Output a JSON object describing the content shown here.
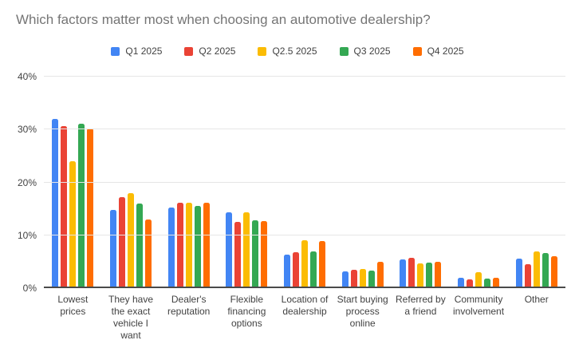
{
  "chart_data": {
    "type": "bar",
    "title": "Which factors matter most when choosing an automotive dealership?",
    "xlabel": "",
    "ylabel": "",
    "ylim": [
      0,
      40
    ],
    "yticks": [
      {
        "value": 0,
        "label": "0%"
      },
      {
        "value": 10,
        "label": "10%"
      },
      {
        "value": 20,
        "label": "20%"
      },
      {
        "value": 30,
        "label": "30%"
      },
      {
        "value": 40,
        "label": "40%"
      }
    ],
    "grid": true,
    "legend_position": "top",
    "categories": [
      "Lowest prices",
      "They have the exact vehicle I want",
      "Dealer's reputation",
      "Flexible financing options",
      "Location of dealership",
      "Start buying process online",
      "Referred by a friend",
      "Community involvement",
      "Other"
    ],
    "series": [
      {
        "name": "Q1 2025",
        "color": "#4285F4",
        "values": [
          32.0,
          14.8,
          15.3,
          14.3,
          6.3,
          3.2,
          5.4,
          2.0,
          5.6
        ]
      },
      {
        "name": "Q2 2025",
        "color": "#EA4335",
        "values": [
          30.7,
          17.2,
          16.1,
          12.6,
          6.8,
          3.4,
          5.8,
          1.6,
          4.6
        ]
      },
      {
        "name": "Q2.5 2025",
        "color": "#FBBC04",
        "values": [
          24.0,
          17.9,
          16.1,
          14.3,
          9.0,
          3.6,
          4.7,
          3.0,
          6.9
        ]
      },
      {
        "name": "Q3 2025",
        "color": "#34A853",
        "values": [
          31.1,
          16.0,
          15.5,
          12.9,
          7.0,
          3.3,
          4.9,
          1.8,
          6.7
        ]
      },
      {
        "name": "Q4 2025",
        "color": "#FF6D01",
        "values": [
          30.2,
          13.0,
          16.1,
          12.7,
          8.9,
          5.0,
          5.0,
          1.9,
          6.1
        ]
      }
    ]
  }
}
